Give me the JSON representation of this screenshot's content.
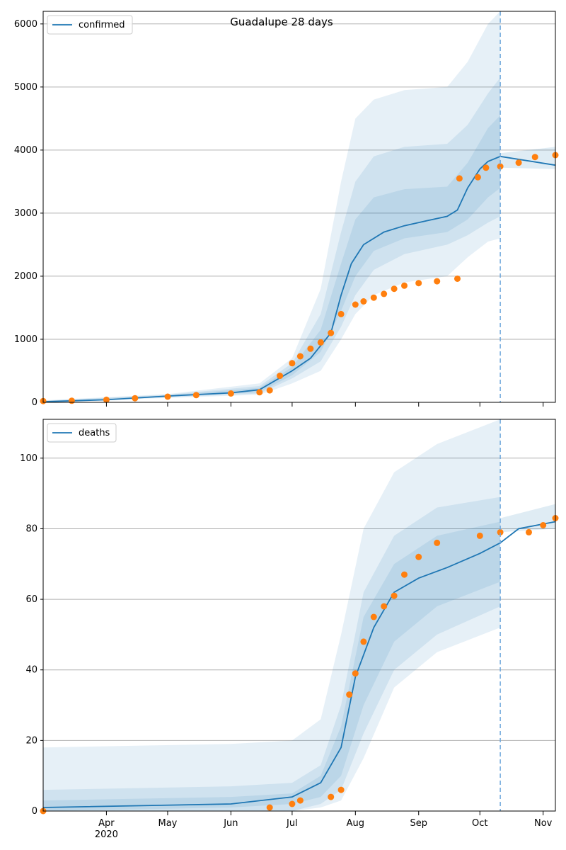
{
  "figure": {
    "title": "Guadalupe 28 days"
  },
  "chart_data": [
    {
      "type": "line",
      "title": "Guadalupe 28 days",
      "legend": "confirmed",
      "legend_position": "top-left",
      "grid": "horizontal",
      "ylim": [
        0,
        6200
      ],
      "yticks": [
        0,
        1000,
        2000,
        3000,
        4000,
        5000,
        6000
      ],
      "xlim": [
        "2020-03-01",
        "2020-11-07"
      ],
      "forecast_start": "2020-10-11",
      "colors": {
        "line": "#1f77b4",
        "points": "#ff7f0e",
        "band": "#1f77b4",
        "grid": "#b0b0b0"
      },
      "series": [
        {
          "kind": "model",
          "x": [
            "2020-03-01",
            "2020-04-01",
            "2020-05-01",
            "2020-06-01",
            "2020-06-15",
            "2020-07-01",
            "2020-07-10",
            "2020-07-20",
            "2020-07-25",
            "2020-07-30",
            "2020-08-05",
            "2020-08-15",
            "2020-08-25",
            "2020-09-05",
            "2020-09-15",
            "2020-09-20",
            "2020-09-25",
            "2020-10-01",
            "2020-10-05",
            "2020-10-11",
            "2020-11-07"
          ],
          "y": [
            10,
            40,
            100,
            150,
            200,
            500,
            700,
            1100,
            1700,
            2200,
            2500,
            2700,
            2800,
            2880,
            2950,
            3050,
            3400,
            3700,
            3820,
            3900,
            3760
          ]
        },
        {
          "kind": "band",
          "level": "outer",
          "x": [
            "2020-03-01",
            "2020-05-01",
            "2020-06-15",
            "2020-07-01",
            "2020-07-15",
            "2020-07-25",
            "2020-08-01",
            "2020-08-10",
            "2020-08-25",
            "2020-09-15",
            "2020-09-25",
            "2020-10-05",
            "2020-10-11"
          ],
          "upper": [
            30,
            130,
            300,
            700,
            1800,
            3500,
            4500,
            4800,
            4950,
            5000,
            5400,
            6000,
            6200
          ],
          "lower": [
            0,
            70,
            120,
            300,
            500,
            1000,
            1400,
            1700,
            1900,
            2000,
            2300,
            2550,
            2600
          ]
        },
        {
          "kind": "band",
          "level": "middle",
          "x": [
            "2020-03-01",
            "2020-05-01",
            "2020-06-15",
            "2020-07-01",
            "2020-07-15",
            "2020-07-25",
            "2020-08-01",
            "2020-08-10",
            "2020-08-25",
            "2020-09-15",
            "2020-09-25",
            "2020-10-05",
            "2020-10-11"
          ],
          "upper": [
            25,
            120,
            260,
            620,
            1400,
            2700,
            3500,
            3900,
            4050,
            4100,
            4400,
            4900,
            5150
          ],
          "lower": [
            0,
            80,
            140,
            380,
            650,
            1200,
            1700,
            2100,
            2350,
            2500,
            2650,
            2850,
            2950
          ]
        },
        {
          "kind": "band",
          "level": "inner",
          "x": [
            "2020-03-01",
            "2020-05-01",
            "2020-06-15",
            "2020-07-01",
            "2020-07-15",
            "2020-07-25",
            "2020-08-01",
            "2020-08-10",
            "2020-08-25",
            "2020-09-15",
            "2020-09-25",
            "2020-10-05",
            "2020-10-11"
          ],
          "upper": [
            20,
            110,
            230,
            560,
            1150,
            2200,
            2900,
            3250,
            3380,
            3420,
            3800,
            4350,
            4550
          ],
          "lower": [
            5,
            90,
            160,
            430,
            800,
            1450,
            2000,
            2400,
            2600,
            2700,
            2900,
            3250,
            3400
          ]
        },
        {
          "kind": "band-forecast",
          "x": [
            "2020-10-11",
            "2020-11-07"
          ],
          "upper": [
            3950,
            4050
          ],
          "lower": [
            3720,
            3700
          ]
        },
        {
          "kind": "observed",
          "x": [
            "2020-03-01",
            "2020-03-15",
            "2020-04-01",
            "2020-04-15",
            "2020-05-01",
            "2020-05-15",
            "2020-06-01",
            "2020-06-15",
            "2020-06-20",
            "2020-06-25",
            "2020-07-01",
            "2020-07-05",
            "2020-07-10",
            "2020-07-15",
            "2020-07-20",
            "2020-07-25",
            "2020-08-01",
            "2020-08-05",
            "2020-08-10",
            "2020-08-15",
            "2020-08-20",
            "2020-08-25",
            "2020-09-01",
            "2020-09-10",
            "2020-09-20",
            "2020-09-21",
            "2020-09-30",
            "2020-10-04",
            "2020-10-11",
            "2020-10-20",
            "2020-10-28",
            "2020-11-07"
          ],
          "y": [
            20,
            25,
            40,
            65,
            90,
            115,
            140,
            160,
            190,
            420,
            620,
            730,
            850,
            950,
            1100,
            1400,
            1550,
            1600,
            1660,
            1720,
            1800,
            1850,
            1890,
            1920,
            1960,
            3550,
            3570,
            3720,
            3740,
            3800,
            3890,
            3920
          ]
        }
      ]
    },
    {
      "type": "line",
      "legend": "deaths",
      "legend_position": "top-left",
      "grid": "horizontal",
      "ylim": [
        0,
        111
      ],
      "yticks": [
        0,
        20,
        40,
        60,
        80,
        100
      ],
      "xlim": [
        "2020-03-01",
        "2020-11-07"
      ],
      "xticks": [
        "Apr",
        "May",
        "Jun",
        "Jul",
        "Aug",
        "Sep",
        "Oct",
        "Nov"
      ],
      "xtick_dates": [
        "2020-04-01",
        "2020-05-01",
        "2020-06-01",
        "2020-07-01",
        "2020-08-01",
        "2020-09-01",
        "2020-10-01",
        "2020-11-01"
      ],
      "year_label": "2020",
      "forecast_start": "2020-10-11",
      "series": [
        {
          "kind": "model",
          "x": [
            "2020-03-01",
            "2020-06-01",
            "2020-07-01",
            "2020-07-15",
            "2020-07-25",
            "2020-08-01",
            "2020-08-10",
            "2020-08-20",
            "2020-09-01",
            "2020-09-15",
            "2020-10-01",
            "2020-10-11",
            "2020-10-20",
            "2020-11-07"
          ],
          "y": [
            1,
            2,
            4,
            8,
            18,
            38,
            52,
            62,
            66,
            69,
            73,
            76,
            80,
            82
          ]
        },
        {
          "kind": "band",
          "level": "outer",
          "x": [
            "2020-03-01",
            "2020-06-01",
            "2020-07-01",
            "2020-07-15",
            "2020-07-25",
            "2020-08-05",
            "2020-08-20",
            "2020-09-10",
            "2020-10-11"
          ],
          "upper": [
            18,
            19,
            20,
            26,
            50,
            80,
            96,
            104,
            111
          ],
          "lower": [
            0,
            0,
            0,
            1,
            3,
            15,
            35,
            45,
            52
          ]
        },
        {
          "kind": "band",
          "level": "middle",
          "x": [
            "2020-03-01",
            "2020-06-01",
            "2020-07-01",
            "2020-07-15",
            "2020-07-25",
            "2020-08-05",
            "2020-08-20",
            "2020-09-10",
            "2020-10-11"
          ],
          "upper": [
            6,
            7,
            8,
            13,
            30,
            62,
            78,
            86,
            89
          ],
          "lower": [
            0,
            0,
            0,
            2,
            6,
            22,
            40,
            50,
            58
          ]
        },
        {
          "kind": "band",
          "level": "inner",
          "x": [
            "2020-03-01",
            "2020-06-01",
            "2020-07-01",
            "2020-07-15",
            "2020-07-25",
            "2020-08-05",
            "2020-08-20",
            "2020-09-10",
            "2020-10-11"
          ],
          "upper": [
            3,
            4,
            5,
            10,
            24,
            55,
            70,
            78,
            82
          ],
          "lower": [
            0,
            1,
            2,
            4,
            10,
            30,
            48,
            58,
            65
          ]
        },
        {
          "kind": "band-forecast",
          "x": [
            "2020-10-11",
            "2020-11-07"
          ],
          "upper": [
            83,
            87
          ],
          "lower": [
            79,
            80
          ]
        },
        {
          "kind": "observed",
          "x": [
            "2020-03-01",
            "2020-06-20",
            "2020-07-01",
            "2020-07-05",
            "2020-07-20",
            "2020-07-25",
            "2020-07-29",
            "2020-08-01",
            "2020-08-05",
            "2020-08-10",
            "2020-08-15",
            "2020-08-20",
            "2020-08-25",
            "2020-09-01",
            "2020-09-10",
            "2020-10-01",
            "2020-10-11",
            "2020-10-25",
            "2020-11-01",
            "2020-11-07"
          ],
          "y": [
            0,
            1,
            2,
            3,
            4,
            6,
            33,
            39,
            48,
            55,
            58,
            61,
            67,
            72,
            76,
            78,
            79,
            79,
            81,
            83
          ]
        }
      ]
    }
  ]
}
